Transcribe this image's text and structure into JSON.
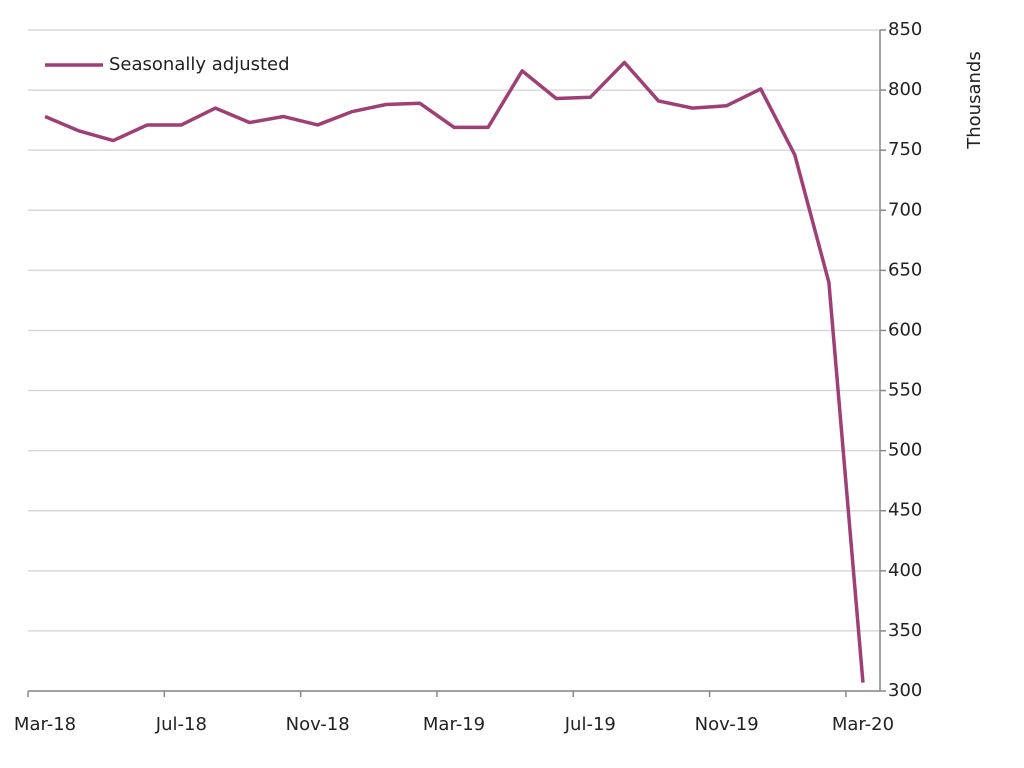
{
  "chart_data": {
    "type": "line",
    "categories": [
      "Mar-18",
      null,
      null,
      null,
      "Jul-18",
      null,
      null,
      null,
      "Nov-18",
      null,
      null,
      null,
      "Mar-19",
      null,
      null,
      null,
      "Jul-19",
      null,
      null,
      null,
      "Nov-19",
      null,
      null,
      null,
      "Mar-20"
    ],
    "series": [
      {
        "name": "Seasonally adjusted",
        "color": "#9e3f76",
        "values": [
          778,
          766,
          758,
          771,
          771,
          785,
          773,
          778,
          771,
          782,
          788,
          789,
          769,
          769,
          816,
          793,
          794,
          823,
          791,
          785,
          787,
          801,
          746,
          640,
          307
        ]
      }
    ],
    "y_label": "Thousands",
    "ylim": [
      300,
      850
    ],
    "yticks": [
      300,
      350,
      400,
      450,
      500,
      550,
      600,
      650,
      700,
      750,
      800,
      850
    ],
    "grid": true,
    "legend": "top-left"
  }
}
